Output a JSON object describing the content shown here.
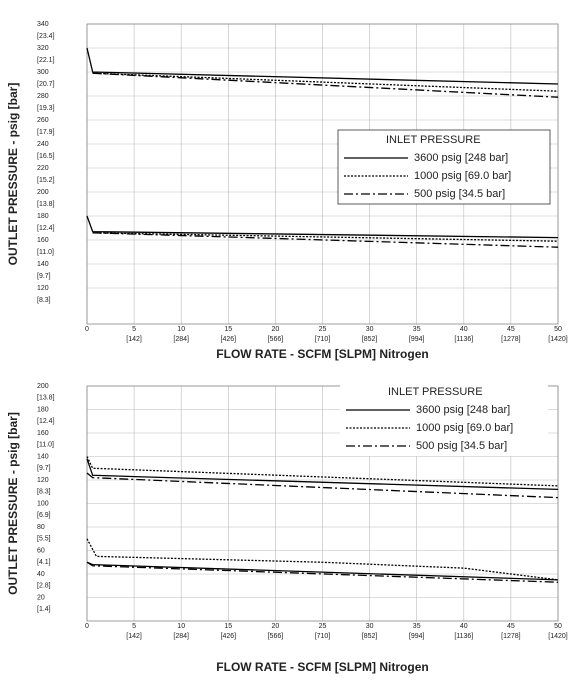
{
  "chart_data": [
    {
      "type": "line",
      "ylabel": "OUTLET PRESSURE - psig [bar]",
      "xlabel": "FLOW RATE - SCFM [SLPM] Nitrogen",
      "xlim": [
        0,
        50
      ],
      "xticks": [
        0,
        5,
        10,
        15,
        20,
        25,
        30,
        35,
        40,
        45,
        50
      ],
      "xticks_secondary": [
        "[142]",
        "[284]",
        "[426]",
        "[566]",
        "[710]",
        "[852]",
        "[994]",
        "[1136]",
        "[1278]",
        "[1420]"
      ],
      "ylim": [
        90,
        340
      ],
      "yticks": [
        120,
        140,
        160,
        180,
        200,
        220,
        240,
        260,
        280,
        300,
        320,
        340
      ],
      "yticks_secondary": [
        "[8.3]",
        "[9.7]",
        "[11.0]",
        "[12.4]",
        "[13.8]",
        "[15.2]",
        "[16.5]",
        "[17.9]",
        "[19.3]",
        "[20.7]",
        "[22.1]",
        "[23.4]"
      ],
      "grid": true,
      "legend": "center right",
      "legend_title": "INLET PRESSURE",
      "series": [
        {
          "name": "3600 psig [248 bar]",
          "color": "#000000",
          "dash": "solid",
          "x": [
            0,
            0.6,
            50,
            null,
            0,
            0.6,
            50
          ],
          "values": [
            320,
            300,
            290,
            null,
            180,
            167,
            162
          ]
        },
        {
          "name": "1000 psig [69.0 bar]",
          "color": "#000000",
          "dash": "dotted",
          "x": [
            0.6,
            50,
            null,
            0.6,
            50
          ],
          "values": [
            299,
            284,
            null,
            166,
            159
          ]
        },
        {
          "name": "500 psig [34.5 bar]",
          "color": "#000000",
          "dash": "dashdot",
          "x": [
            0.6,
            50,
            null,
            0.6,
            50
          ],
          "values": [
            299,
            279,
            null,
            166,
            154
          ]
        }
      ]
    },
    {
      "type": "line",
      "ylabel": "OUTLET PRESSURE - psig [bar]",
      "xlabel": "FLOW RATE - SCFM [SLPM] Nitrogen",
      "xlim": [
        0,
        50
      ],
      "xticks": [
        0,
        5,
        10,
        15,
        20,
        25,
        30,
        35,
        40,
        45,
        50
      ],
      "xticks_secondary": [
        "[142]",
        "[284]",
        "[426]",
        "[566]",
        "[710]",
        "[852]",
        "[994]",
        "[1136]",
        "[1278]",
        "[1420]"
      ],
      "ylim": [
        0,
        200
      ],
      "yticks": [
        20,
        40,
        60,
        80,
        100,
        120,
        140,
        160,
        180,
        200
      ],
      "yticks_secondary": [
        "[1.4]",
        "[2.8]",
        "[4.1]",
        "[5.5]",
        "[6.9]",
        "[8.3]",
        "[9.7]",
        "[11.0]",
        "[12.4]",
        "[13.8]"
      ],
      "grid": true,
      "legend": "upper right",
      "legend_title": "INLET PRESSURE",
      "series": [
        {
          "name": "3600 psig [248 bar]",
          "color": "#000000",
          "dash": "solid",
          "x": [
            0,
            0.6,
            50,
            null,
            0,
            0.6,
            50
          ],
          "values": [
            138,
            124,
            112,
            null,
            50,
            48,
            35
          ]
        },
        {
          "name": "1000 psig [69.0 bar]",
          "color": "#000000",
          "dash": "dotted",
          "x": [
            0,
            0.6,
            50,
            null,
            0,
            1,
            25,
            40,
            50
          ],
          "values": [
            140,
            130,
            115,
            null,
            70,
            55,
            50,
            45,
            35
          ]
        },
        {
          "name": "500 psig [34.5 bar]",
          "color": "#000000",
          "dash": "dashdot",
          "x": [
            0,
            0.6,
            50,
            null,
            0,
            0.6,
            50
          ],
          "values": [
            126,
            122,
            105,
            null,
            50,
            47,
            33
          ]
        }
      ]
    }
  ]
}
